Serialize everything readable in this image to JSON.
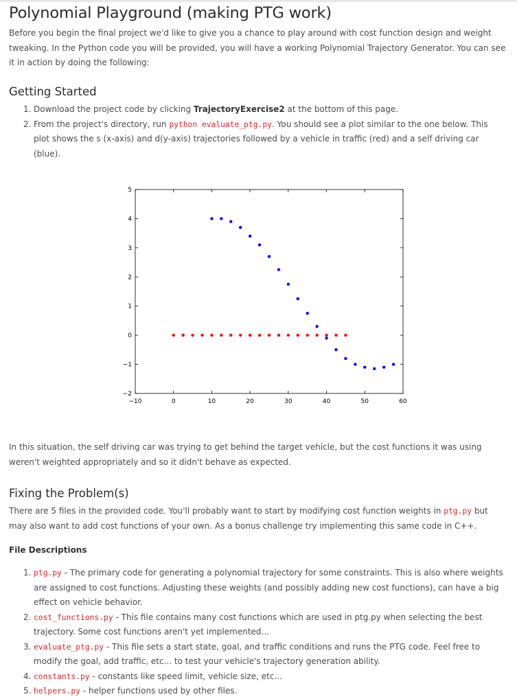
{
  "title": "Polynomial Playground (making PTG work)",
  "intro": "Before you begin the final project we'd like to give you a chance to play around with cost function design and weight tweaking. In the Python code you will be provided, you will have a working Polynomial Trajectory Generator. You can see it in action by doing the following:",
  "getting_started": {
    "heading": "Getting Started",
    "items": [
      {
        "num": "1.",
        "pre": "Download the project code by clicking ",
        "bold": "TrajectoryExercise2",
        "post": " at the bottom of this page."
      },
      {
        "num": "2.",
        "pre": "From the project's directory, run ",
        "code": "python evaluate_ptg.py",
        "post": ". You should see a plot similar to the one below. This plot shows the s (x-axis) and d(y-axis) trajectories followed by a vehicle in traffic (red) and a self driving car (blue)."
      }
    ]
  },
  "chart_data": {
    "type": "scatter",
    "xlim": [
      -10,
      60
    ],
    "ylim": [
      -2,
      5
    ],
    "xticks": [
      "−10",
      "0",
      "10",
      "20",
      "30",
      "40",
      "50",
      "60"
    ],
    "yticks": [
      "−2",
      "−1",
      "0",
      "1",
      "2",
      "3",
      "4",
      "5"
    ],
    "series": [
      {
        "color": "#ff0000",
        "points": [
          [
            0,
            0
          ],
          [
            2.5,
            0
          ],
          [
            5,
            0
          ],
          [
            7.5,
            0
          ],
          [
            10,
            0
          ],
          [
            12.5,
            0
          ],
          [
            15,
            0
          ],
          [
            17.5,
            0
          ],
          [
            20,
            0
          ],
          [
            22.5,
            0
          ],
          [
            25,
            0
          ],
          [
            27.5,
            0
          ],
          [
            30,
            0
          ],
          [
            32.5,
            0
          ],
          [
            35,
            0
          ],
          [
            37.5,
            0
          ],
          [
            40,
            0
          ],
          [
            42.5,
            0
          ],
          [
            45,
            0
          ]
        ]
      },
      {
        "color": "#0000ff",
        "points": [
          [
            10,
            4
          ],
          [
            12.5,
            4
          ],
          [
            15,
            3.9
          ],
          [
            17.5,
            3.7
          ],
          [
            20,
            3.4
          ],
          [
            22.5,
            3.1
          ],
          [
            25,
            2.7
          ],
          [
            27.5,
            2.25
          ],
          [
            30,
            1.75
          ],
          [
            32.5,
            1.25
          ],
          [
            35,
            0.75
          ],
          [
            37.5,
            0.3
          ],
          [
            40,
            -0.1
          ],
          [
            42.5,
            -0.5
          ],
          [
            45,
            -0.8
          ],
          [
            47.5,
            -1.0
          ],
          [
            50,
            -1.1
          ],
          [
            52.5,
            -1.15
          ],
          [
            55,
            -1.1
          ],
          [
            57.5,
            -1.0
          ]
        ]
      }
    ],
    "grid": false
  },
  "situation": "In this situation, the self driving car was trying to get behind the target vehicle, but the cost functions it was using weren't weighted appropriately and so it didn't behave as expected.",
  "fixing": {
    "heading": "Fixing the Problem(s)",
    "text_pre": "There are 5 files in the provided code. You'll probably want to start by modifying cost function weights in ",
    "text_code": "ptg.py",
    "text_post": " but may also want to add cost functions of your own. As a bonus challenge try implementing this same code in C++."
  },
  "file_descriptions": {
    "heading": "File Descriptions",
    "items": [
      {
        "num": "1.",
        "code": "ptg.py",
        "text": " - The primary code for generating a polynomial trajectory for some constraints. This is also where weights are assigned to cost functions. Adjusting these weights (and possibly adding new cost functions), can have a big effect on vehicle behavior."
      },
      {
        "num": "2.",
        "code": "cost_functions.py",
        "text": " - This file contains many cost functions which are used in ptg.py when selecting the best trajectory. Some cost functions aren't yet implemented..."
      },
      {
        "num": "3.",
        "code": "evaluate_ptg.py",
        "text": " - This file sets a start state, goal, and traffic conditions and runs the PTG code. Feel free to modify the goal, add traffic, etc... to test your vehicle's trajectory generation ability."
      },
      {
        "num": "4.",
        "code": "constants.py",
        "text": " - constants like speed limit, vehicle size, etc..."
      },
      {
        "num": "5.",
        "code": "helpers.py",
        "text": " - helper functions used by other files."
      }
    ]
  }
}
